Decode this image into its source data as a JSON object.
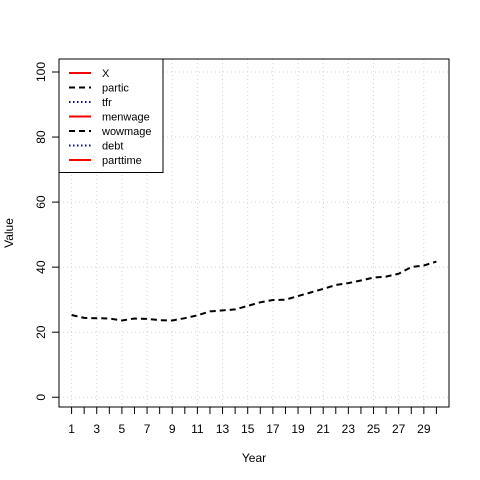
{
  "chart_data": {
    "type": "line",
    "title": "",
    "xlabel": "Year",
    "ylabel": "Value",
    "xlim": [
      0,
      31
    ],
    "ylim": [
      -3,
      104
    ],
    "x": [
      1,
      2,
      3,
      4,
      5,
      6,
      7,
      8,
      9,
      10,
      11,
      12,
      13,
      14,
      15,
      16,
      17,
      18,
      19,
      20,
      21,
      22,
      23,
      24,
      25,
      26,
      27,
      28,
      29,
      30
    ],
    "x_ticks": [
      1,
      2,
      3,
      4,
      5,
      6,
      7,
      8,
      9,
      10,
      11,
      12,
      13,
      14,
      15,
      16,
      17,
      18,
      19,
      20,
      21,
      22,
      23,
      24,
      25,
      26,
      27,
      28,
      29,
      30
    ],
    "x_tick_labels": [
      "1",
      "",
      "3",
      "",
      "5",
      "",
      "7",
      "",
      "9",
      "",
      "11",
      "",
      "13",
      "",
      "15",
      "",
      "17",
      "",
      "19",
      "",
      "21",
      "",
      "23",
      "",
      "25",
      "",
      "27",
      "",
      "29",
      ""
    ],
    "y_ticks": [
      0,
      20,
      40,
      60,
      80,
      100
    ],
    "y_tick_labels": [
      "0",
      "20",
      "40",
      "60",
      "80",
      "100"
    ],
    "grid": true,
    "legend_position": "top-left",
    "legend": [
      {
        "name": "X",
        "color": "#ff0000",
        "dash": "solid"
      },
      {
        "name": "partic",
        "color": "#000000",
        "dash": "dashed"
      },
      {
        "name": "tfr",
        "color": "#0000cd",
        "dash": "dotted"
      },
      {
        "name": "menwage",
        "color": "#ff0000",
        "dash": "solid"
      },
      {
        "name": "wowmage",
        "color": "#000000",
        "dash": "dashed"
      },
      {
        "name": "debt",
        "color": "#0000cd",
        "dash": "dotted"
      },
      {
        "name": "parttime",
        "color": "#ff0000",
        "dash": "solid"
      }
    ],
    "series": [
      {
        "name": "partic",
        "color": "#000000",
        "dash": "dashed",
        "values": [
          25.3,
          24.4,
          24.3,
          24.2,
          23.6,
          24.2,
          24.1,
          23.7,
          23.6,
          24.3,
          25.2,
          26.4,
          26.7,
          27.0,
          28.1,
          29.2,
          29.9,
          30.0,
          31.1,
          32.2,
          33.3,
          34.5,
          35.1,
          35.9,
          36.8,
          37.1,
          38.0,
          40.0,
          40.5,
          41.7
        ]
      }
    ]
  }
}
